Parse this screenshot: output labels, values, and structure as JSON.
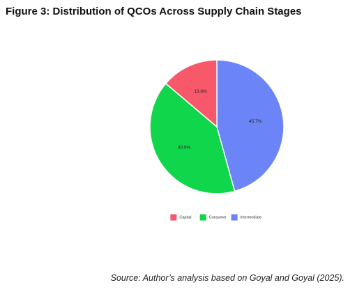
{
  "figure": {
    "title": "Figure 3: Distribution of QCOs Across Supply Chain Stages",
    "source": "Source: Author’s analysis based on Goyal and Goyal (2025)."
  },
  "chart_data": {
    "type": "pie",
    "title": "",
    "slices": [
      {
        "label": "Intermediate",
        "value": 45.7,
        "display": "45.7%",
        "color": "#6b84f7"
      },
      {
        "label": "Consumer",
        "value": 40.5,
        "display": "40.5%",
        "color": "#0fd64a"
      },
      {
        "label": "Capital",
        "value": 13.8,
        "display": "13.8%",
        "color": "#f7586a"
      }
    ],
    "legend_order": [
      "Capital",
      "Consumer",
      "Intermediate"
    ],
    "legend_placement": "bottom",
    "start_angle": "12 o'clock",
    "direction": "clockwise"
  }
}
